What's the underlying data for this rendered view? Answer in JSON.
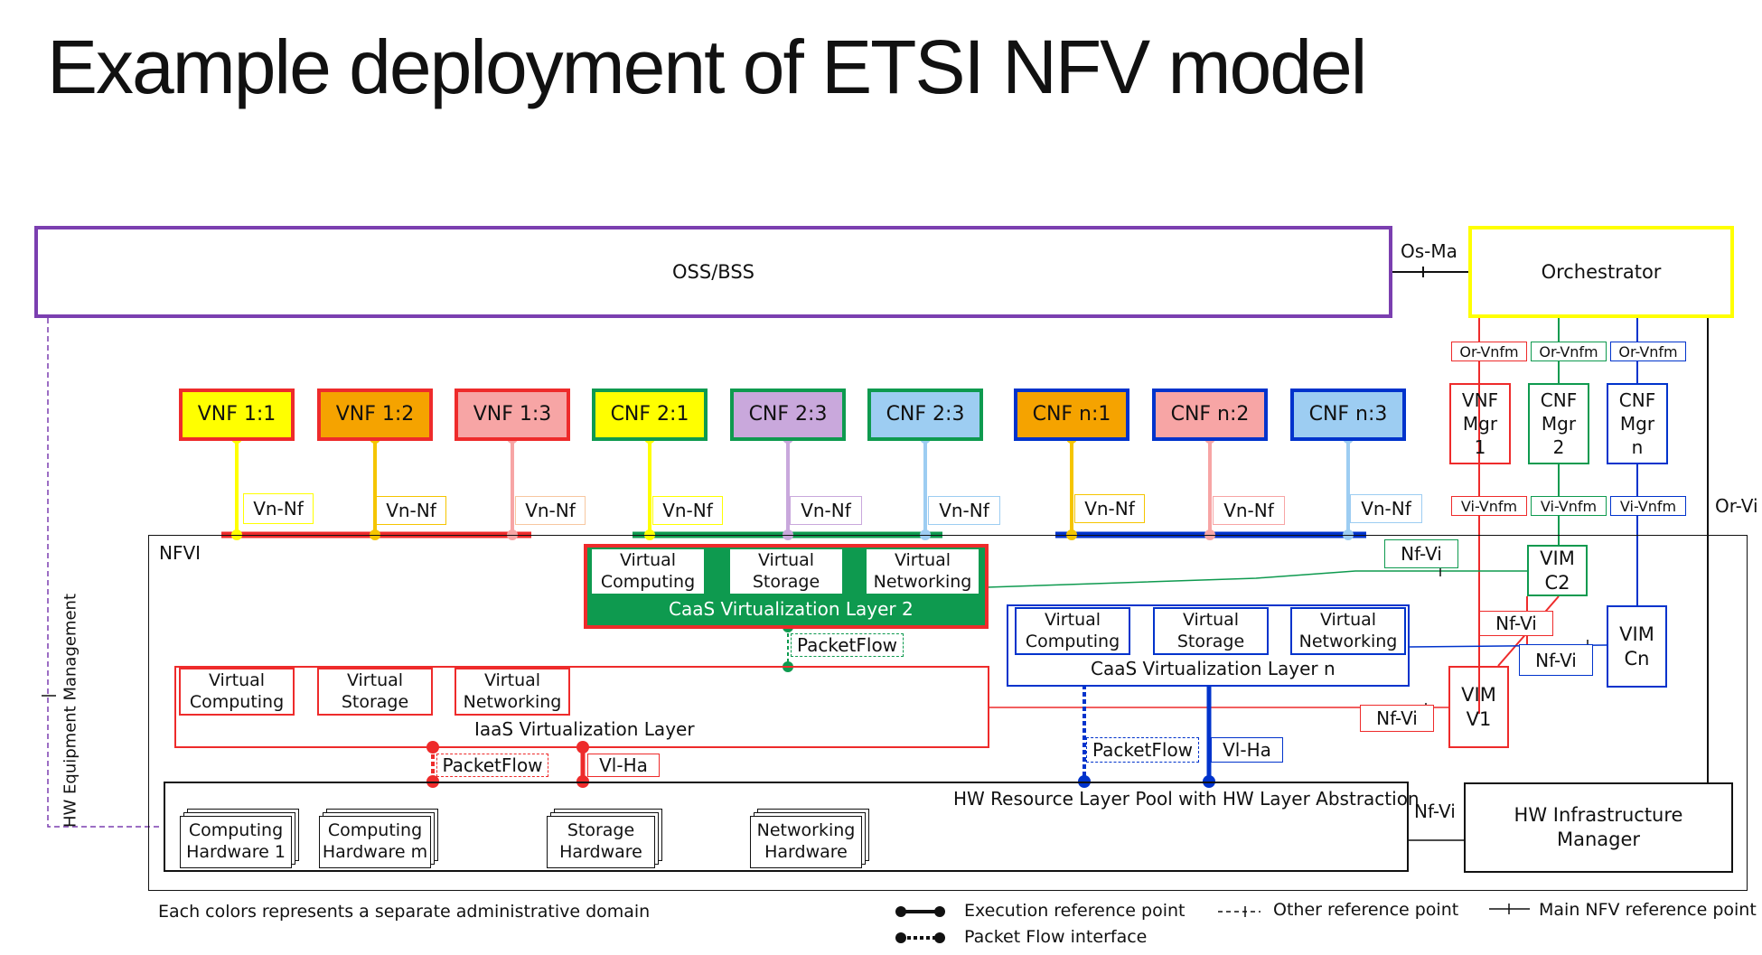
{
  "title": "Example deployment of ETSI NFV model",
  "oss": "OSS/BSS",
  "orchestrator": "Orchestrator",
  "os_ma": "Os-Ma",
  "or_vi": "Or-Vi",
  "hw_equipment_management": "HW Equipment Management",
  "nfvi": "NFVI",
  "vnfs": [
    "VNF 1:1",
    "VNF 1:2",
    "VNF 1:3",
    "CNF 2:1",
    "CNF 2:3",
    "CNF 2:3",
    "CNF n:1",
    "CNF n:2",
    "CNF n:3"
  ],
  "vn_nf": "Vn-Nf",
  "managers": [
    "VNF\nMgr\n1",
    "CNF\nMgr\n2",
    "CNF\nMgr\nn"
  ],
  "or_vnfm": "Or-Vnfm",
  "vi_vnfm": "Vi-Vnfm",
  "nf_vi": "Nf-Vi",
  "vi_ha": "Vl-Ha",
  "packetflow": "PacketFlow",
  "vim_c2": "VIM\nC2",
  "vim_cn": "VIM\nCn",
  "vim_v1": "VIM\nV1",
  "virtual_computing": "Virtual\nComputing",
  "virtual_storage": "Virtual\nStorage",
  "virtual_networking": "Virtual\nNetworking",
  "caas_layer_2": "CaaS Virtualization Layer 2",
  "caas_layer_n": "CaaS Virtualization Layer n",
  "iaas_layer": "IaaS Virtualization Layer",
  "hw_pool": "HW Resource Layer Pool with HW Layer Abstraction",
  "hw_items": [
    "Computing\nHardware 1",
    "Computing\nHardware m",
    "Storage\nHardware",
    "Networking\nHardware"
  ],
  "hw_infra_manager": "HW Infrastructure\nManager",
  "legend": {
    "note": "Each colors represents a separate administrative domain",
    "execution": "Execution reference point",
    "packet_flow": "Packet Flow interface",
    "other": "Other reference point",
    "main": "Main NFV reference point"
  },
  "colors": {
    "red": "#ee2b2b",
    "orange": "#f5a300",
    "yellow": "#ffff00",
    "green": "#0e9a4f",
    "purple": "#7b3fb0",
    "blue": "#0033cc",
    "lightblue": "#7fc4f0",
    "pink": "#f7a5a5",
    "lavender": "#c9a8dc"
  }
}
